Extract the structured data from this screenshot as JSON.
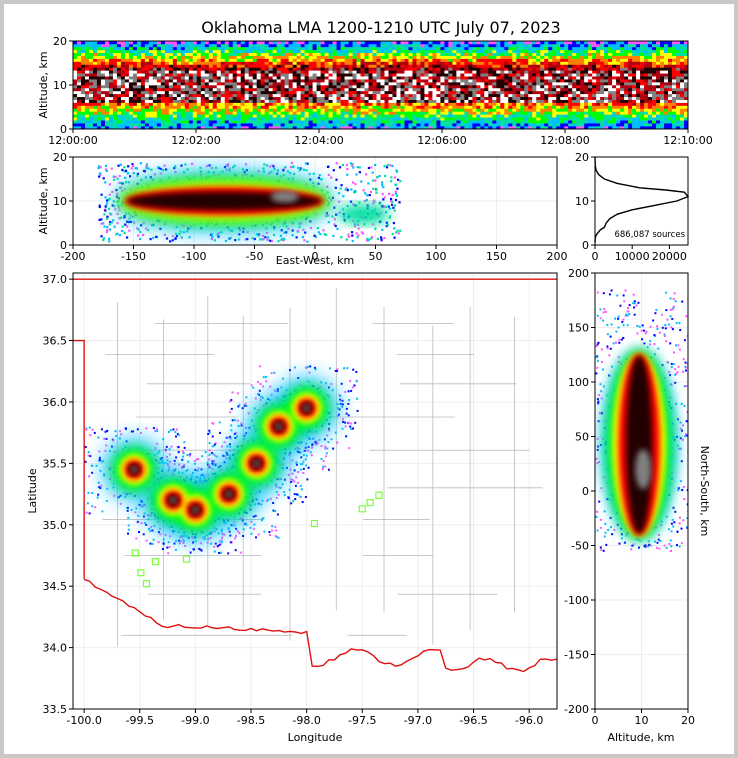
{
  "chart_data": [
    {
      "id": "time_altitude",
      "type": "heatmap",
      "title": "Oklahoma LMA 1200-1210 UTC July 07, 2023",
      "xlabel": "",
      "ylabel": "Altitude, km",
      "xlim": [
        0,
        10
      ],
      "ylim": [
        0,
        20
      ],
      "xticks": [
        0,
        2,
        4,
        6,
        8,
        10
      ],
      "xtick_labels": [
        "12:00:00",
        "12:02:00",
        "12:04:00",
        "12:06:00",
        "12:08:00",
        "12:10:00"
      ],
      "yticks": [
        0,
        10,
        20
      ],
      "ytick_labels": [
        "0",
        "10",
        "20"
      ],
      "density_profile": {
        "core_altitude_km": [
          6,
          13
        ],
        "max_altitude_km": 20
      }
    },
    {
      "id": "eastwest_altitude",
      "type": "heatmap",
      "xlabel": "East-West, km",
      "ylabel": "Altitude, km",
      "xlim": [
        -200,
        200
      ],
      "ylim": [
        0,
        20
      ],
      "xticks": [
        -200,
        -150,
        -100,
        -50,
        0,
        50,
        100,
        150,
        200
      ],
      "yticks": [
        0,
        10,
        20
      ],
      "core_extent_km": [
        -160,
        10
      ],
      "max_extent_km": [
        -200,
        70
      ]
    },
    {
      "id": "altitude_histogram",
      "type": "line",
      "annotation": "686,087 sources",
      "xlim": [
        0,
        25000
      ],
      "ylim": [
        0,
        20
      ],
      "xticks": [
        0,
        10000,
        20000
      ],
      "xtick_labels": [
        "0",
        "10000",
        "20000"
      ],
      "yticks": [
        0,
        10,
        20
      ],
      "x": [
        0,
        20,
        60,
        200,
        500,
        1000,
        1500,
        2500,
        3000,
        4000,
        6000,
        10000,
        16000,
        22000,
        25000,
        24000,
        19000,
        12000,
        6000,
        2500,
        1000,
        300,
        80,
        0
      ],
      "y": [
        0.5,
        1.0,
        1.5,
        2.0,
        2.5,
        3.0,
        3.5,
        4.0,
        5.0,
        6.0,
        7.0,
        8.0,
        9.0,
        10.0,
        11.0,
        12.0,
        12.5,
        13.0,
        14.0,
        15.0,
        16.0,
        17.0,
        18.0,
        20.0
      ]
    },
    {
      "id": "plan_view",
      "type": "heatmap",
      "xlabel": "Longitude",
      "ylabel": "Latitude",
      "xlim": [
        -100.1,
        -95.75
      ],
      "ylim": [
        33.5,
        37.05
      ],
      "xticks": [
        -100.0,
        -99.5,
        -99.0,
        -98.5,
        -98.0,
        -97.5,
        -97.0,
        -96.5,
        -96.0
      ],
      "xtick_labels": [
        "-100.0",
        "-99.5",
        "-99.0",
        "-98.5",
        "-98.0",
        "-97.5",
        "-97.0",
        "-96.5",
        "-96.0"
      ],
      "yticks": [
        33.5,
        34.0,
        34.5,
        35.0,
        35.5,
        36.0,
        36.5,
        37.0
      ],
      "ytick_labels": [
        "33.5",
        "34.0",
        "34.5",
        "35.0",
        "35.5",
        "36.0",
        "36.5",
        "37.0"
      ],
      "stations": [
        {
          "lon": -99.54,
          "lat": 34.77
        },
        {
          "lon": -99.49,
          "lat": 34.61
        },
        {
          "lon": -99.44,
          "lat": 34.52
        },
        {
          "lon": -99.36,
          "lat": 34.7
        },
        {
          "lon": -99.08,
          "lat": 34.72
        },
        {
          "lon": -97.5,
          "lat": 35.13
        },
        {
          "lon": -97.43,
          "lat": 35.18
        },
        {
          "lon": -97.35,
          "lat": 35.24
        },
        {
          "lon": -97.93,
          "lat": 35.01
        }
      ],
      "storm_cores": [
        {
          "lon": -99.55,
          "lat": 35.45
        },
        {
          "lon": -99.2,
          "lat": 35.2
        },
        {
          "lon": -99.0,
          "lat": 35.12
        },
        {
          "lon": -98.7,
          "lat": 35.25
        },
        {
          "lon": -98.45,
          "lat": 35.5
        },
        {
          "lon": -98.25,
          "lat": 35.8
        },
        {
          "lon": -98.0,
          "lat": 35.95
        }
      ]
    },
    {
      "id": "northsouth_altitude",
      "type": "heatmap",
      "xlabel": "Altitude, km",
      "ylabel": "North-South, km",
      "xlim": [
        0,
        20
      ],
      "ylim": [
        -200,
        200
      ],
      "xticks": [
        0,
        10,
        20
      ],
      "yticks": [
        -200,
        -150,
        -100,
        -50,
        0,
        50,
        100,
        150,
        200
      ],
      "core_extent_km": [
        -45,
        130
      ]
    }
  ],
  "colors": {
    "axes": "#000000",
    "state_border": "#e01010",
    "county_lines": "#bbbbbb",
    "stations": "#7cff3a",
    "colormap": [
      "#ffffff",
      "#ff55ff",
      "#0000ff",
      "#00bfff",
      "#00e0a0",
      "#00ff00",
      "#ffff00",
      "#ff8000",
      "#ff0000",
      "#b00010",
      "#200000",
      "#808080",
      "#ffffff"
    ]
  }
}
